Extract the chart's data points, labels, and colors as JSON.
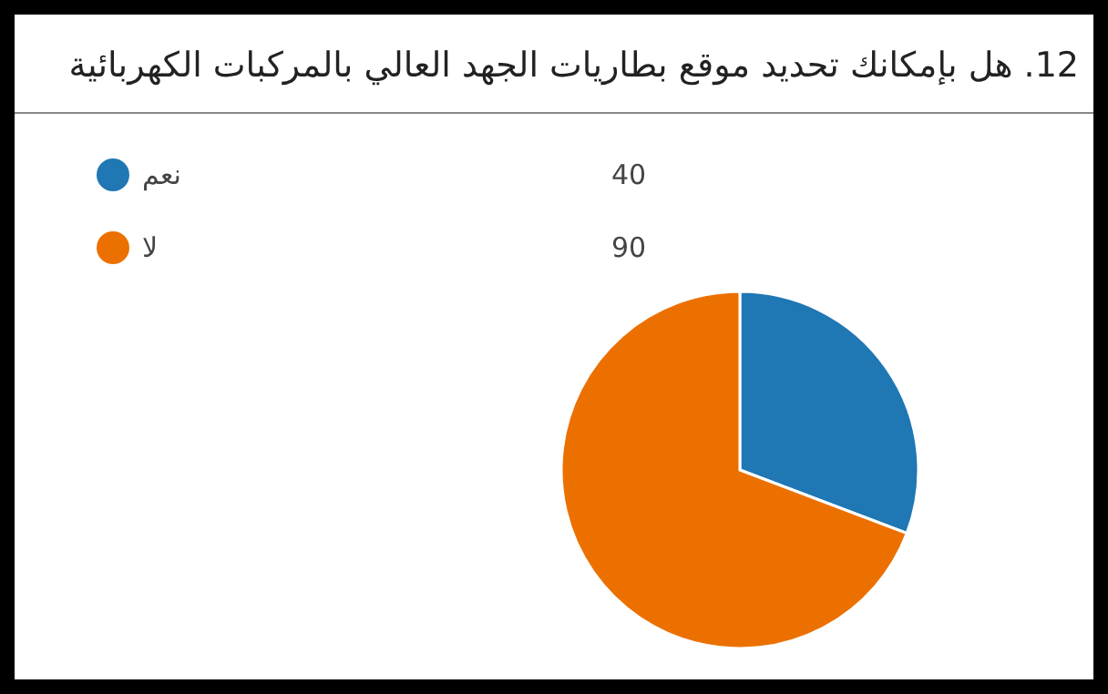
{
  "chart_data": {
    "type": "pie",
    "title": "12. هل بإمكانك تحديد موقع بطاريات الجهد العالي بالمركبات الكهربائية",
    "categories": [
      "نعم",
      "لا"
    ],
    "values": [
      40,
      90
    ],
    "colors": [
      "#1f77b4",
      "#ec7000"
    ],
    "legend": "top left",
    "data_labels": true
  }
}
